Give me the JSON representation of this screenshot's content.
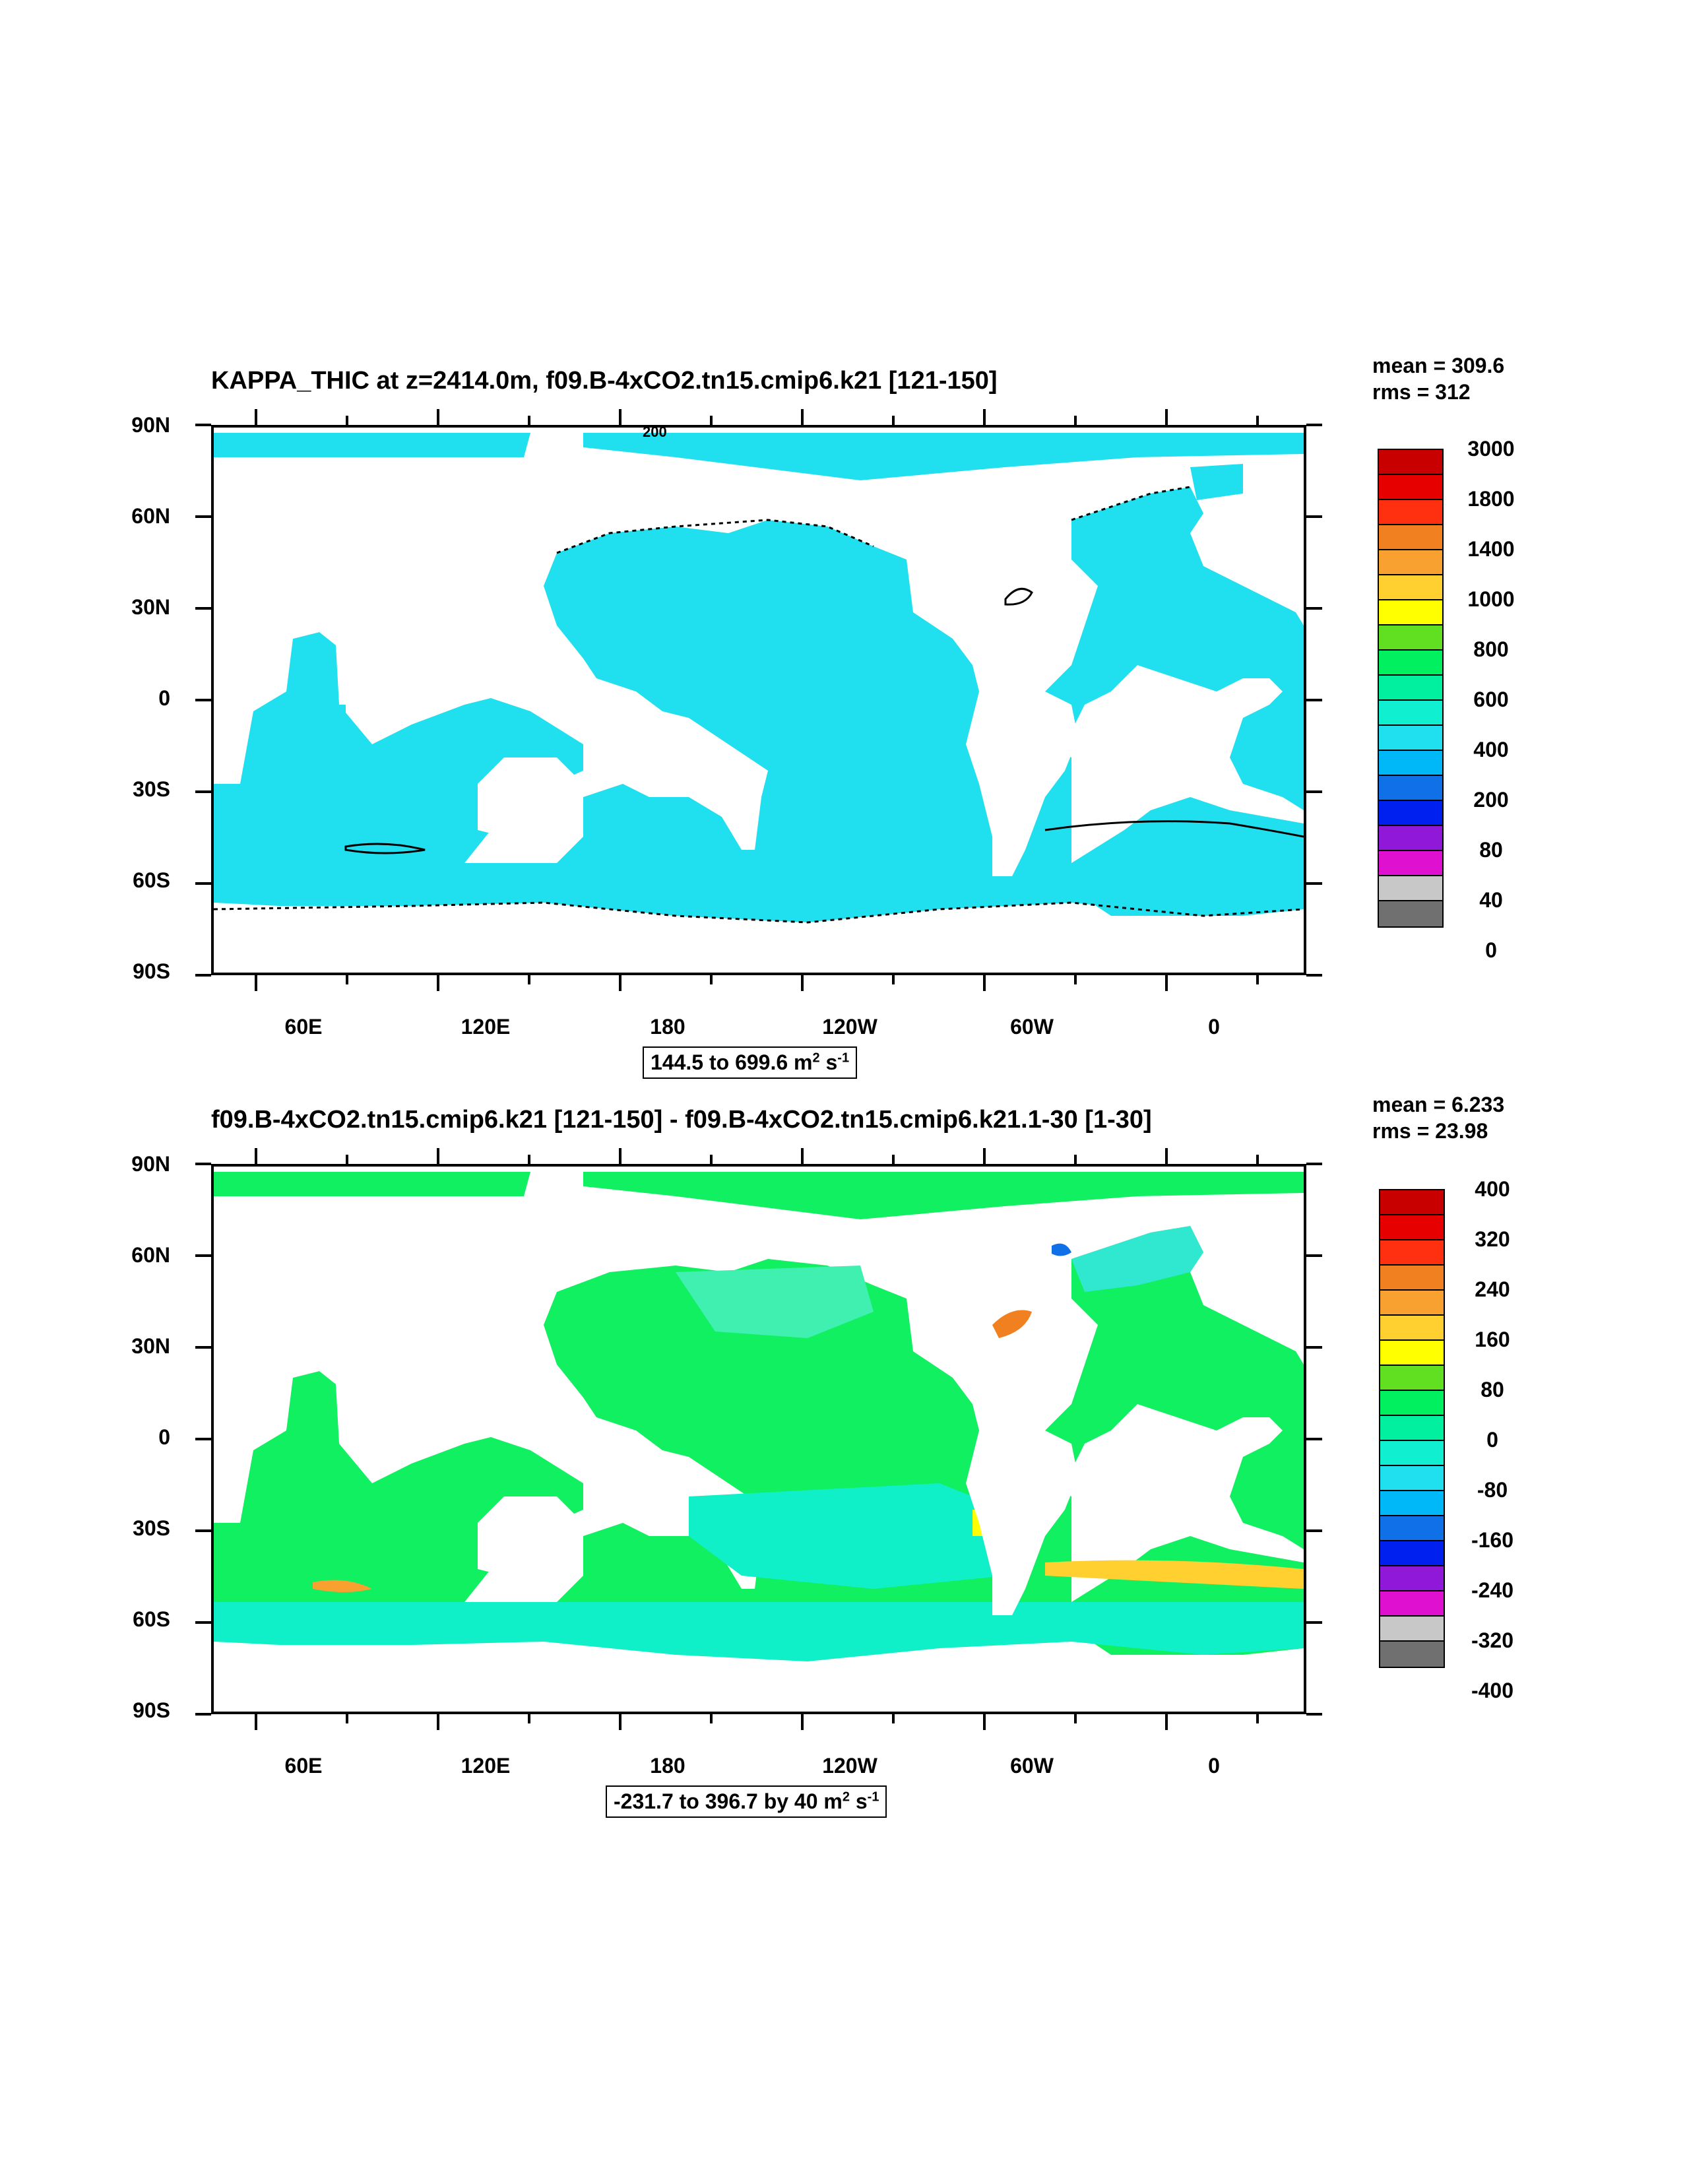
{
  "chart_data": [
    {
      "type": "heatmap",
      "title": "KAPPA_THIC at z=2414.0m, f09.B-4xCO2.tn15.cmip6.k21 [121-150]",
      "stats": {
        "mean": "mean = 309.6",
        "rms": "rms = 312"
      },
      "range_text": "144.5 to 699.6 m",
      "range_unit_m_exp": "2",
      "range_unit_s": " s",
      "range_unit_s_exp": "-1",
      "contour_label": "200",
      "y_ticks": [
        "90N",
        "60N",
        "30N",
        "0",
        "30S",
        "60S",
        "90S"
      ],
      "x_ticks": [
        "60E",
        "120E",
        "180",
        "120W",
        "60W",
        "0"
      ],
      "ylim": [
        -90,
        90
      ],
      "xlim": [
        30,
        390
      ],
      "colorbar": {
        "labels": [
          "3000",
          "1800",
          "1400",
          "1000",
          "800",
          "600",
          "400",
          "200",
          "80",
          "40",
          "0"
        ],
        "colors": [
          "#c80000",
          "#e60000",
          "#ff3010",
          "#f08020",
          "#f8a030",
          "#ffd030",
          "#ffff00",
          "#60e020",
          "#00f060",
          "#00f0a0",
          "#10f0d0",
          "#20e0f0",
          "#00b8f8",
          "#1070e8",
          "#0020f0",
          "#9018d8",
          "#e010d0",
          "#c8c8c8",
          "#707070"
        ]
      },
      "dominant_value_color": "#20e0f0"
    },
    {
      "type": "heatmap",
      "title": "f09.B-4xCO2.tn15.cmip6.k21 [121-150] - f09.B-4xCO2.tn15.cmip6.k21.1-30 [1-30]",
      "stats": {
        "mean": "mean = 6.233",
        "rms": "rms = 23.98"
      },
      "range_text": "-231.7 to 396.7 by 40 m",
      "range_unit_m_exp": "2",
      "range_unit_s": " s",
      "range_unit_s_exp": "-1",
      "y_ticks": [
        "90N",
        "60N",
        "30N",
        "0",
        "30S",
        "60S",
        "90S"
      ],
      "x_ticks": [
        "60E",
        "120E",
        "180",
        "120W",
        "60W",
        "0"
      ],
      "ylim": [
        -90,
        90
      ],
      "xlim": [
        30,
        390
      ],
      "colorbar": {
        "labels": [
          "400",
          "320",
          "240",
          "160",
          "80",
          "0",
          "-80",
          "-160",
          "-240",
          "-320",
          "-400"
        ],
        "colors": [
          "#c80000",
          "#e60000",
          "#ff3010",
          "#f08020",
          "#f8a030",
          "#ffd030",
          "#ffff00",
          "#60e020",
          "#00f060",
          "#00f0a0",
          "#10f0d0",
          "#20e0f0",
          "#00b8f8",
          "#1070e8",
          "#0020f0",
          "#9018d8",
          "#e010d0",
          "#c8c8c8",
          "#707070"
        ]
      },
      "dominant_value_color": "#10f060"
    }
  ]
}
